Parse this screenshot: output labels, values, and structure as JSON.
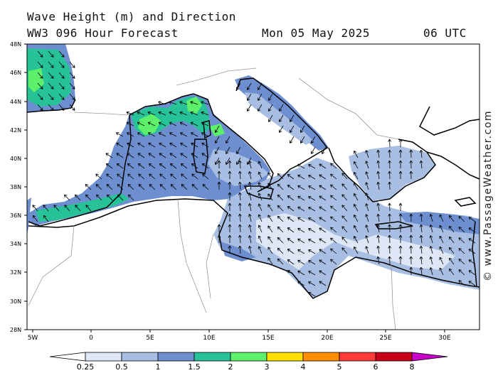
{
  "header": {
    "title": "Wave Height (m) and Direction",
    "model": "WW3 096 Hour Forecast",
    "date": "Mon 05 May 2025",
    "time": "06 UTC"
  },
  "credit": "© www.PassageWeather.com",
  "axes": {
    "lat_labels": [
      "48N",
      "46N",
      "44N",
      "42N",
      "40N",
      "38N",
      "36N",
      "34N",
      "32N",
      "30N",
      "28N"
    ],
    "lon_labels": [
      "5W",
      "0",
      "5E",
      "10E",
      "15E",
      "20E",
      "25E",
      "30E"
    ]
  },
  "colorbar": {
    "ticks": [
      "0.25",
      "0.5",
      "1",
      "1.5",
      "2",
      "3",
      "4",
      "5",
      "6",
      "8"
    ],
    "colors": [
      "#dfe6f5",
      "#a8bfe3",
      "#6e8fcf",
      "#28c298",
      "#5ef06a",
      "#ffe000",
      "#ff8e00",
      "#ff3a3a",
      "#c8001a",
      "#c800c8"
    ]
  },
  "map_colors": {
    "land": "#ffffff",
    "sea_calm": "#dfe6f5",
    "sea_low": "#a8bfe3",
    "sea_mid": "#6e8fcf",
    "sea_high": "#28c298",
    "sea_peak": "#5ef06a",
    "coast": "#000000",
    "border": "#999999"
  }
}
